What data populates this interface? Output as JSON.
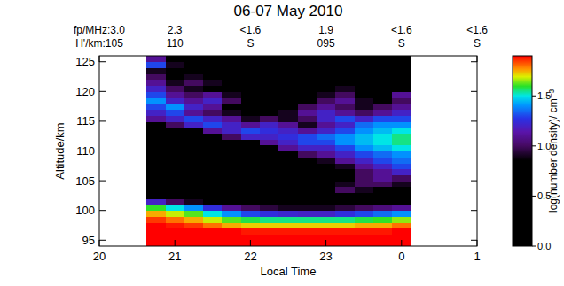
{
  "chart_data": {
    "type": "heatmap",
    "title": "06-07 May 2010",
    "xlabel": "Local Time",
    "ylabel": "Altitude/km",
    "xlim": [
      20,
      25
    ],
    "xticks": [
      20,
      21,
      22,
      23,
      {
        "value": 24,
        "label": "0"
      },
      {
        "value": 25,
        "label": "1"
      }
    ],
    "ylim": [
      94,
      126
    ],
    "yticks": [
      95,
      100,
      105,
      110,
      115,
      120,
      125
    ],
    "top_rows": [
      [
        "fp/MHz:3.0",
        "2.3",
        "<1.6",
        "1.9",
        "<1.6",
        "<1.6"
      ],
      [
        "H'/km:105",
        "110",
        "S",
        "095",
        "S",
        "S"
      ]
    ],
    "x_edges": [
      20.625,
      20.875,
      21.125,
      21.375,
      21.625,
      21.875,
      22.125,
      22.375,
      22.625,
      22.875,
      23.125,
      23.375,
      23.625,
      23.875,
      24.125
    ],
    "y_edges": [
      94,
      95,
      96,
      97,
      98,
      99,
      100,
      101,
      102,
      103,
      104,
      105,
      106,
      107,
      108,
      109,
      110,
      111,
      112,
      113,
      114,
      115,
      116,
      117,
      118,
      119,
      120,
      121,
      122,
      123,
      124,
      125,
      126
    ],
    "cells": [
      [
        1.9,
        1.9,
        1.9,
        1.9,
        1.9,
        1.9,
        1.9,
        1.9,
        1.9,
        1.9,
        1.9,
        1.9,
        1.9,
        1.9
      ],
      [
        1.9,
        1.9,
        1.9,
        1.9,
        1.9,
        1.9,
        1.9,
        1.9,
        1.9,
        1.9,
        1.9,
        1.9,
        1.9,
        1.9
      ],
      [
        1.9,
        1.9,
        1.9,
        1.9,
        1.9,
        1.88,
        1.88,
        1.88,
        1.88,
        1.88,
        1.88,
        1.88,
        1.88,
        1.9
      ],
      [
        1.9,
        1.88,
        1.85,
        1.8,
        1.75,
        1.72,
        1.72,
        1.72,
        1.72,
        1.72,
        1.72,
        1.75,
        1.75,
        1.8
      ],
      [
        1.85,
        1.8,
        1.75,
        1.68,
        1.62,
        1.58,
        1.55,
        1.55,
        1.55,
        1.55,
        1.55,
        1.58,
        1.6,
        1.65
      ],
      [
        1.75,
        1.68,
        1.62,
        1.5,
        1.4,
        1.3,
        1.25,
        1.22,
        1.2,
        1.2,
        1.25,
        1.3,
        1.35,
        1.4
      ],
      [
        1.6,
        1.5,
        1.4,
        1.25,
        1.1,
        1.0,
        0.95,
        0.9,
        0.9,
        0.9,
        0.95,
        1.0,
        1.05,
        1.1
      ],
      [
        1.2,
        1.0,
        0.9,
        0.8,
        0.5,
        0.3,
        0.2,
        0.2,
        0.2,
        0.2,
        0.3,
        0.4,
        0.6,
        0.7
      ],
      [
        0.3,
        0.2,
        0.1,
        0,
        0,
        0,
        0,
        0,
        0,
        0,
        0,
        0.2,
        0.3,
        0.3
      ],
      [
        0,
        0,
        0,
        0,
        0,
        0,
        0,
        0,
        0,
        0.8,
        1.0,
        0.9,
        0.6,
        0.5
      ],
      [
        0,
        0,
        0,
        0,
        0,
        0,
        0,
        0,
        0,
        0.5,
        0.9,
        1.0,
        1.0,
        0.9
      ],
      [
        0,
        0,
        0,
        0,
        0,
        0,
        0,
        0,
        0,
        0.3,
        0.6,
        1.0,
        1.1,
        1.0
      ],
      [
        0,
        0,
        0,
        0,
        0,
        0,
        0,
        0,
        0,
        0,
        0.5,
        1.0,
        1.1,
        1.2
      ],
      [
        0,
        0,
        0,
        0,
        0,
        0,
        0,
        0,
        0,
        0.3,
        0.9,
        1.1,
        1.2,
        1.3
      ],
      [
        0,
        0,
        0,
        0,
        0,
        0,
        0,
        0,
        0.5,
        0.9,
        1.1,
        1.2,
        1.3,
        1.35
      ],
      [
        0,
        0,
        0,
        0,
        0,
        0,
        0,
        0.6,
        1.0,
        1.1,
        1.2,
        1.3,
        1.35,
        1.4
      ],
      [
        0,
        0,
        0,
        0,
        0,
        0,
        0.5,
        1.1,
        1.2,
        1.2,
        1.3,
        1.4,
        1.45,
        1.5
      ],
      [
        0,
        0,
        0,
        0,
        0,
        0.6,
        1.1,
        1.2,
        1.3,
        1.3,
        1.4,
        1.45,
        1.5,
        1.55
      ],
      [
        0,
        0,
        0,
        0.5,
        1.0,
        1.2,
        1.2,
        1.25,
        1.3,
        1.35,
        1.4,
        1.45,
        1.5,
        1.55
      ],
      [
        0,
        0,
        0.6,
        1.1,
        1.2,
        1.3,
        1.25,
        1.2,
        1.1,
        1.2,
        1.3,
        1.4,
        1.45,
        1.5
      ],
      [
        0.8,
        1.0,
        1.2,
        1.3,
        1.2,
        1.1,
        1.2,
        1.1,
        0.9,
        1.1,
        1.2,
        1.35,
        1.4,
        1.4
      ],
      [
        1.1,
        1.2,
        1.3,
        1.2,
        1.1,
        0.9,
        1.0,
        0.9,
        1.0,
        1.2,
        1.3,
        1.2,
        1.3,
        1.3
      ],
      [
        1.2,
        1.3,
        1.1,
        1.0,
        0.9,
        0.6,
        0.7,
        0.9,
        1.1,
        1.2,
        1.1,
        1.0,
        1.1,
        1.2
      ],
      [
        1.3,
        1.4,
        1.2,
        1.1,
        0.8,
        0.5,
        0.5,
        0.6,
        1.0,
        1.1,
        1.0,
        0.9,
        1.0,
        1.1
      ],
      [
        1.4,
        1.2,
        1.1,
        1.2,
        1.0,
        0.4,
        0.3,
        0.4,
        0.8,
        1.0,
        1.1,
        0.9,
        0.8,
        1.0
      ],
      [
        1.3,
        1.1,
        1.0,
        1.1,
        0.9,
        0.3,
        0,
        0,
        0.6,
        0.9,
        1.0,
        0.8,
        0.7,
        1.1
      ],
      [
        1.2,
        1.0,
        0.9,
        0.8,
        0.6,
        0,
        0,
        0,
        0.4,
        0.8,
        0.9,
        0.6,
        0.5,
        0.8
      ],
      [
        1.1,
        0.9,
        1.0,
        0.9,
        0.5,
        0,
        0,
        0,
        0,
        0.5,
        0.6,
        0.4,
        0,
        0.5
      ],
      [
        1.0,
        0.8,
        0.9,
        0.7,
        0.4,
        0,
        0,
        0,
        0,
        0.3,
        0,
        0,
        0,
        0
      ],
      [
        0.9,
        0.7,
        0.6,
        0.5,
        0,
        0,
        0,
        0,
        0,
        0,
        0,
        0,
        0,
        0
      ],
      [
        1.3,
        0.9,
        0.5,
        0,
        0,
        0,
        0,
        0,
        0,
        0,
        0,
        0,
        0,
        0
      ],
      [
        1.1,
        0.5,
        0,
        0,
        0,
        0,
        0,
        0,
        0,
        0,
        0,
        0,
        0,
        0
      ]
    ],
    "colorbar": {
      "label": "log(number density)/ cm⁻³",
      "range": [
        0,
        1.9
      ],
      "ticks": [
        {
          "value": 0,
          "label": "0.0"
        },
        {
          "value": 0.5,
          "label": "0.5"
        },
        {
          "value": 1.0,
          "label": "1.0"
        },
        {
          "value": 1.5,
          "label": "1.5"
        }
      ]
    }
  }
}
